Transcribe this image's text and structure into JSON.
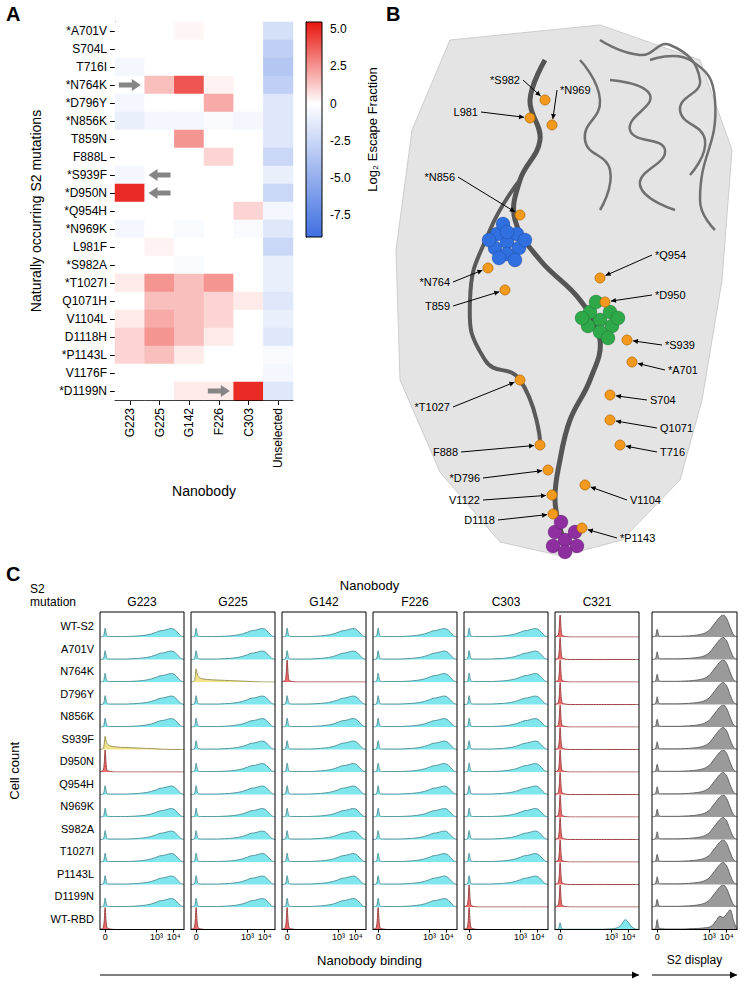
{
  "panel_labels": [
    "A",
    "B",
    "C"
  ],
  "chart_data": [
    {
      "type": "heatmap",
      "x_label": "Nanobody",
      "y_label": "Naturally occurring S2 mutations",
      "categories": [
        "G223",
        "G225",
        "G142",
        "F226",
        "C303",
        "Unselected"
      ],
      "rows": [
        "*A701V",
        "S704L",
        "T716I",
        "*N764K",
        "*D796Y",
        "*N856K",
        "T859N",
        "F888L",
        "*S939F",
        "*D950N",
        "*Q954H",
        "*N969K",
        "L981F",
        "*S982A",
        "*T1027I",
        "Q1071H",
        "V1104L",
        "D1118H",
        "*P1143L",
        "V1176F",
        "*D1199N"
      ],
      "values": [
        [
          0,
          0,
          0.2,
          0,
          0,
          -2
        ],
        [
          0,
          0,
          0,
          0,
          0,
          -3
        ],
        [
          -0.5,
          0,
          0,
          0,
          0,
          -3.5
        ],
        [
          0,
          1.5,
          4,
          0.3,
          0,
          -3
        ],
        [
          -0.5,
          0,
          0,
          2,
          0,
          -1.5
        ],
        [
          -1,
          -0.5,
          -0.5,
          -0.3,
          -0.5,
          -1.5
        ],
        [
          0,
          0,
          2.5,
          0,
          0,
          -1.5
        ],
        [
          0,
          0,
          0,
          1,
          0,
          -2.5
        ],
        [
          -0.5,
          0,
          0,
          0,
          0,
          -1
        ],
        [
          5,
          0,
          0,
          0,
          0,
          -2.5
        ],
        [
          0,
          0,
          0,
          0,
          1,
          -0.5
        ],
        [
          -0.5,
          0,
          -0.3,
          0,
          -0.3,
          -1.5
        ],
        [
          0,
          0.3,
          0,
          0,
          0,
          -2.5
        ],
        [
          0,
          0,
          -0.3,
          0,
          0,
          -1
        ],
        [
          0.5,
          2.5,
          1.5,
          2.5,
          0,
          -1
        ],
        [
          0,
          1.5,
          1.5,
          1,
          0.5,
          -1.5
        ],
        [
          0.5,
          2,
          1.5,
          1,
          0,
          -1
        ],
        [
          1,
          2.5,
          1.5,
          0.5,
          0,
          -1.5
        ],
        [
          1,
          1.5,
          0.5,
          0,
          0,
          -0.3
        ],
        [
          0,
          0,
          0,
          0,
          0,
          -0.5
        ],
        [
          0,
          0,
          0.5,
          0.5,
          5,
          -1.5
        ]
      ],
      "colorbar_title": "Log₂ Escape Fraction",
      "colorbar_range": [
        -9,
        5.5
      ],
      "colorbar_ticks": [
        {
          "value": 5,
          "label": "5.0"
        },
        {
          "value": 2.5,
          "label": "2.5"
        },
        0,
        {
          "value": -2.5,
          "label": "-2.5"
        },
        {
          "value": -5,
          "label": "-5.0"
        },
        {
          "value": -7.5,
          "label": "-7.5"
        }
      ],
      "colorbar_colors": [
        "#3f6fe0",
        "#ffffff",
        "#e8150e"
      ],
      "arrows": [
        {
          "row": "*N764K",
          "column": "G223",
          "direction": "right"
        },
        {
          "row": "*S939F",
          "column": "G225",
          "direction": "left"
        },
        {
          "row": "*D950N",
          "column": "G225",
          "direction": "left"
        },
        {
          "row": "*D1199N",
          "column": "F226",
          "direction": "right"
        }
      ]
    },
    {
      "type": "histogram_grid",
      "title": "Nanobody",
      "row_title": "S2 mutation",
      "y_label": "Cell count",
      "x_label": "Nanobody binding",
      "display_label": "S2 display",
      "columns": [
        "G223",
        "G225",
        "G142",
        "F226",
        "C303",
        "C321"
      ],
      "rows": [
        "WT-S2",
        "A701V",
        "N764K",
        "D796Y",
        "N856K",
        "S939F",
        "D950N",
        "Q954H",
        "N969K",
        "S982A",
        "T1027I",
        "P1143L",
        "D1199N",
        "WT-RBD"
      ],
      "x": [
        -0.3,
        -0.1,
        0,
        0.1,
        0.3,
        0.6,
        0.9,
        1.2,
        1.5,
        1.8,
        2.1,
        2.4,
        2.7,
        3.0,
        3.2,
        3.4,
        3.6,
        3.8,
        4.0,
        4.2,
        4.4,
        4.6
      ],
      "xlim": [
        -0.3,
        4.6
      ],
      "xticks": [
        0,
        {
          "value": 3,
          "label": "10³"
        },
        {
          "value": 4,
          "label": "10⁴"
        }
      ],
      "ylim": [
        0,
        100
      ],
      "tick_labels": "x",
      "profiles": [
        {
          "color": "#7fe6ee",
          "values": [
            0,
            3,
            40,
            6,
            2,
            2,
            2,
            2,
            3,
            4,
            6,
            9,
            14,
            22,
            28,
            30,
            34,
            38,
            36,
            22,
            6,
            0
          ]
        },
        {
          "color": "#f26a6a",
          "values": [
            0,
            10,
            100,
            10,
            2,
            0,
            0,
            0,
            0,
            0,
            0,
            0,
            0,
            0,
            0,
            0,
            0,
            0,
            0,
            0,
            0,
            0
          ]
        },
        {
          "color": "#f2e48a",
          "values": [
            0,
            6,
            60,
            28,
            16,
            12,
            10,
            9,
            8,
            7,
            6,
            5,
            4,
            3,
            2,
            1,
            1,
            0,
            0,
            0,
            0,
            0
          ]
        },
        {
          "color": "#9a9a9a",
          "values": [
            0,
            4,
            35,
            6,
            3,
            3,
            3,
            3,
            4,
            5,
            7,
            10,
            16,
            30,
            50,
            70,
            90,
            100,
            85,
            45,
            10,
            0
          ]
        },
        {
          "color": "#9a9a9a",
          "values": [
            0,
            5,
            45,
            8,
            3,
            2,
            2,
            2,
            2,
            3,
            4,
            5,
            7,
            10,
            20,
            40,
            60,
            55,
            70,
            90,
            40,
            0
          ]
        },
        {
          "color": "#7fe6ee",
          "values": [
            0,
            3,
            30,
            4,
            1,
            1,
            1,
            1,
            1,
            1,
            1,
            1,
            2,
            3,
            5,
            10,
            25,
            45,
            30,
            10,
            2,
            0
          ]
        }
      ],
      "cells": [
        [
          0,
          0,
          0,
          0,
          0,
          1,
          3
        ],
        [
          0,
          0,
          0,
          0,
          0,
          1,
          3
        ],
        [
          0,
          2,
          1,
          0,
          0,
          1,
          3
        ],
        [
          0,
          0,
          0,
          0,
          0,
          1,
          3
        ],
        [
          0,
          0,
          0,
          0,
          0,
          1,
          3
        ],
        [
          2,
          0,
          0,
          0,
          0,
          1,
          3
        ],
        [
          1,
          0,
          0,
          0,
          0,
          1,
          3
        ],
        [
          0,
          0,
          0,
          0,
          0,
          1,
          3
        ],
        [
          0,
          0,
          0,
          0,
          0,
          1,
          3
        ],
        [
          0,
          0,
          0,
          0,
          0,
          1,
          3
        ],
        [
          0,
          0,
          0,
          0,
          0,
          1,
          3
        ],
        [
          0,
          0,
          0,
          0,
          0,
          1,
          3
        ],
        [
          0,
          0,
          0,
          0,
          1,
          1,
          3
        ],
        [
          1,
          1,
          1,
          1,
          1,
          5,
          4
        ]
      ]
    }
  ],
  "structure": {
    "labels": [
      "*S982",
      "L981",
      "*N969",
      "*N856",
      "*N764",
      "T859",
      "*Q954",
      "*D950",
      "*S939",
      "*A701",
      "S704",
      "Q1071",
      "T716",
      "*T1027",
      "F888",
      "*D796",
      "V1122",
      "V1104",
      "D1118",
      "*P1143"
    ]
  }
}
